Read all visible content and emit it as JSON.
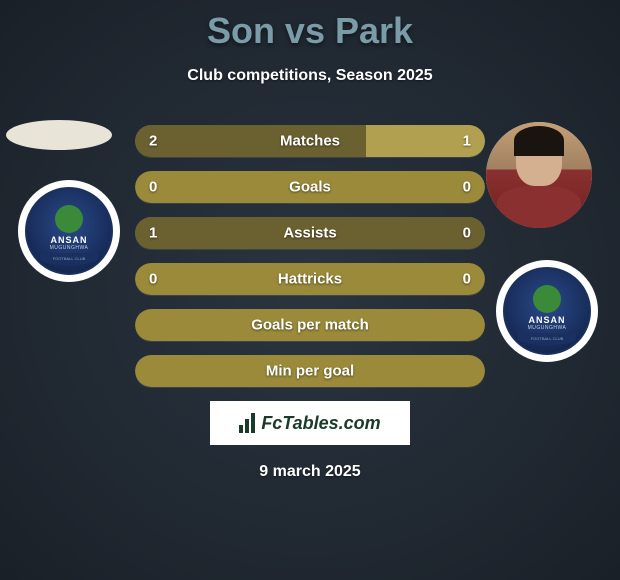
{
  "title": "Son vs Park",
  "subtitle": "Club competitions, Season 2025",
  "date": "9 march 2025",
  "fctables_label": "FcTables.com",
  "colors": {
    "title_color": "#7a9ca8",
    "text_color": "#ffffff",
    "bar_bg": "#9a8a3a",
    "bar_left": "#6b6030",
    "bar_right": "#b0a050",
    "background_start": "#2a3540",
    "background_end": "#1a2028",
    "badge_bg": "#ffffff",
    "badge_inner": "#1a3060"
  },
  "club": {
    "name_top": "ANSAN",
    "name_mid": "MUGUNGHWA",
    "banner": "FOOTBALL CLUB"
  },
  "stats": [
    {
      "label": "Matches",
      "left_value": "2",
      "right_value": "1",
      "left_pct": 66,
      "right_pct": 34
    },
    {
      "label": "Goals",
      "left_value": "0",
      "right_value": "0",
      "left_pct": 0,
      "right_pct": 0
    },
    {
      "label": "Assists",
      "left_value": "1",
      "right_value": "0",
      "left_pct": 100,
      "right_pct": 0
    },
    {
      "label": "Hattricks",
      "left_value": "0",
      "right_value": "0",
      "left_pct": 0,
      "right_pct": 0
    },
    {
      "label": "Goals per match",
      "left_value": "",
      "right_value": "",
      "left_pct": 0,
      "right_pct": 0
    },
    {
      "label": "Min per goal",
      "left_value": "",
      "right_value": "",
      "left_pct": 0,
      "right_pct": 0
    }
  ],
  "fctables_bars": [
    8,
    14,
    20
  ]
}
